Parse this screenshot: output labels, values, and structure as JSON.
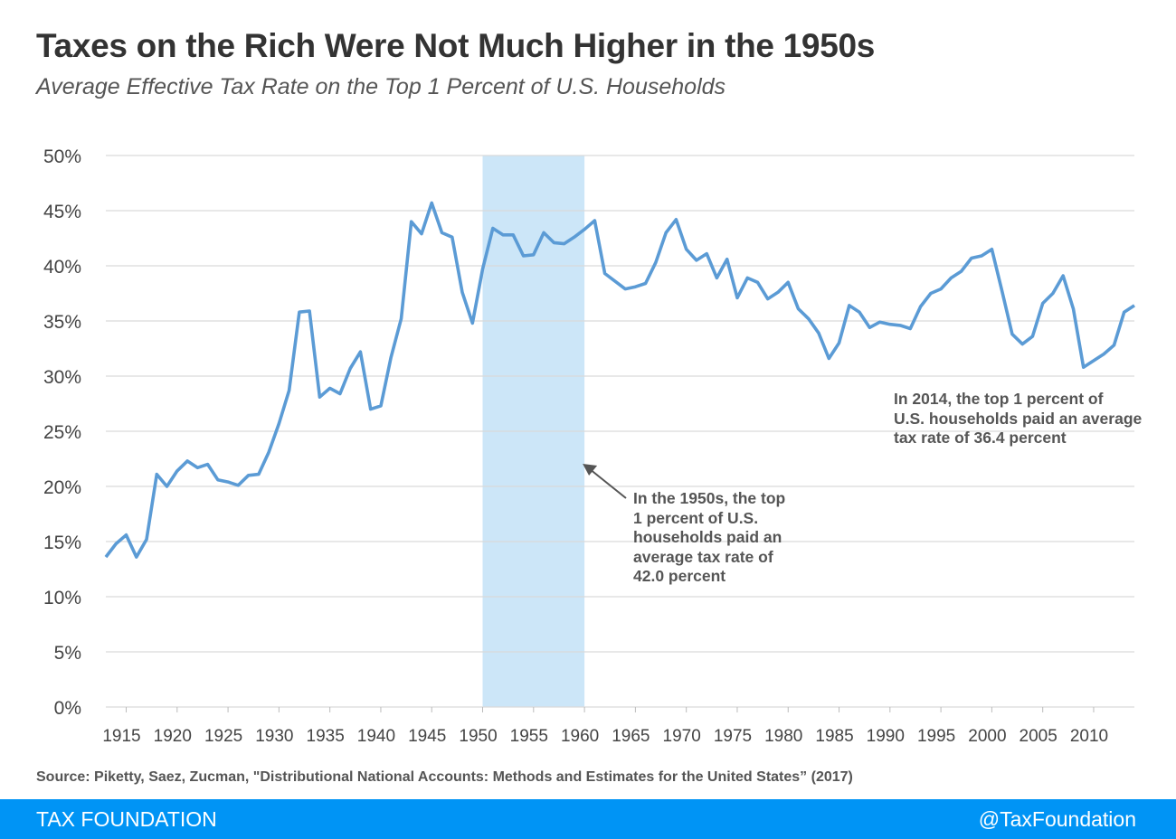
{
  "title": "Taxes on the Rich Were Not Much Higher in the 1950s",
  "subtitle": "Average  Effective Tax Rate on the Top 1 Percent of U.S. Households",
  "source": "Source: Piketty, Saez, Zucman, \"Distributional National Accounts: Methods and Estimates for the United States” (2017)",
  "footer": {
    "brand": "TAX FOUNDATION",
    "handle": "@TaxFoundation"
  },
  "colors": {
    "line": "#5b9bd5",
    "highlight": "#cce6f8",
    "footer": "#0094f5"
  },
  "chart_data": {
    "type": "line",
    "title": "Taxes on the Rich Were Not Much Higher in the 1950s",
    "xlabel": "",
    "ylabel": "",
    "xlim": [
      1913,
      2014
    ],
    "ylim": [
      0,
      50
    ],
    "grid": true,
    "y_ticks": [
      "0%",
      "5%",
      "10%",
      "15%",
      "20%",
      "25%",
      "30%",
      "35%",
      "40%",
      "45%",
      "50%"
    ],
    "x_ticks": [
      "1915",
      "1920",
      "1925",
      "1930",
      "1935",
      "1940",
      "1945",
      "1950",
      "1955",
      "1960",
      "1965",
      "1970",
      "1975",
      "1980",
      "1985",
      "1990",
      "1995",
      "2000",
      "2005",
      "2010"
    ],
    "highlight_range": [
      1950,
      1960
    ],
    "x": [
      1913,
      1914,
      1915,
      1916,
      1917,
      1918,
      1919,
      1920,
      1921,
      1922,
      1923,
      1924,
      1925,
      1926,
      1927,
      1928,
      1929,
      1930,
      1931,
      1932,
      1933,
      1934,
      1935,
      1936,
      1937,
      1938,
      1939,
      1940,
      1941,
      1942,
      1943,
      1944,
      1945,
      1946,
      1947,
      1948,
      1949,
      1950,
      1951,
      1952,
      1953,
      1954,
      1955,
      1956,
      1957,
      1958,
      1959,
      1960,
      1961,
      1962,
      1963,
      1964,
      1965,
      1966,
      1967,
      1968,
      1969,
      1970,
      1971,
      1972,
      1973,
      1974,
      1975,
      1976,
      1977,
      1978,
      1979,
      1980,
      1981,
      1982,
      1983,
      1984,
      1985,
      1986,
      1987,
      1988,
      1989,
      1990,
      1991,
      1992,
      1993,
      1994,
      1995,
      1996,
      1997,
      1998,
      1999,
      2000,
      2001,
      2002,
      2003,
      2004,
      2005,
      2006,
      2007,
      2008,
      2009,
      2010,
      2011,
      2012,
      2013,
      2014
    ],
    "values": [
      13.6,
      14.8,
      15.6,
      13.6,
      15.2,
      21.1,
      20.0,
      21.4,
      22.3,
      21.7,
      22.0,
      20.6,
      20.4,
      20.1,
      21.0,
      21.1,
      23.1,
      25.7,
      28.7,
      35.8,
      35.9,
      28.1,
      28.9,
      28.4,
      30.7,
      32.2,
      27.0,
      27.3,
      31.7,
      35.2,
      44.0,
      42.9,
      45.7,
      43.0,
      42.6,
      37.6,
      34.8,
      39.7,
      43.4,
      42.8,
      42.8,
      40.9,
      41.0,
      43.0,
      42.1,
      42.0,
      42.6,
      43.3,
      44.1,
      39.3,
      38.6,
      37.9,
      38.1,
      38.4,
      40.3,
      43.0,
      44.2,
      41.5,
      40.5,
      41.1,
      38.9,
      40.6,
      37.1,
      38.9,
      38.5,
      37.0,
      37.6,
      38.5,
      36.1,
      35.2,
      33.9,
      31.6,
      33.0,
      36.4,
      35.8,
      34.4,
      34.9,
      34.7,
      34.6,
      34.3,
      36.3,
      37.5,
      37.9,
      38.9,
      39.5,
      40.7,
      40.9,
      41.5,
      37.7,
      33.8,
      32.9,
      33.6,
      36.6,
      37.5,
      39.1,
      36.1,
      30.8,
      31.4,
      32.0,
      32.8,
      35.8,
      36.4
    ],
    "annotations": [
      {
        "text": [
          "In the 1950s, the top",
          "1 percent of U.S.",
          "households paid an",
          "average tax rate of",
          "42.0 percent"
        ],
        "arrow_to_year": 1960
      },
      {
        "text": [
          "In 2014, the top 1 percent of",
          "U.S. households paid an average",
          "tax rate of 36.4 percent"
        ]
      }
    ]
  }
}
